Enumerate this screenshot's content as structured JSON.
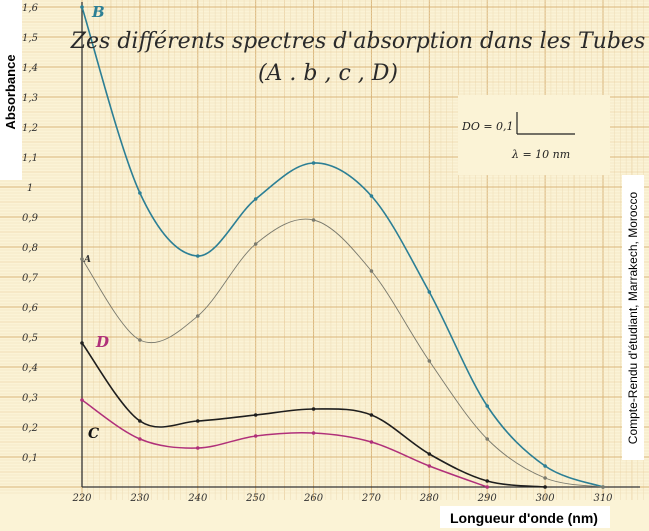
{
  "chart_data": {
    "type": "line",
    "title": "Zes différents spectres d'absorption dans les Tubes",
    "subtitle": "(A . b , c , D)",
    "xlabel": "Longueur d'onde (nm)",
    "ylabel": "Absorbance",
    "side_note": "Compte-Rendu d'étudiant, Marrakech, Morocco",
    "scale_note": {
      "y_unit": "DO = 0,1",
      "x_unit": "λ = 10 nm"
    },
    "xlim": [
      220,
      310
    ],
    "ylim": [
      0,
      1.6
    ],
    "grid": true,
    "x_ticks": [
      220,
      230,
      240,
      250,
      260,
      270,
      280,
      290,
      300,
      310
    ],
    "x_tick_labels": [
      "220",
      "230",
      "240",
      "250",
      "260",
      "270",
      "280",
      "290",
      "300",
      "310"
    ],
    "y_ticks": [
      0.1,
      0.2,
      0.3,
      0.4,
      0.5,
      0.6,
      0.7,
      0.8,
      0.9,
      1.0,
      1.1,
      1.2,
      1.3,
      1.4,
      1.5,
      1.6
    ],
    "y_tick_labels": [
      "0,1",
      "0,2",
      "0,3",
      "0,4",
      "0,5",
      "0,6",
      "0,7",
      "0,8",
      "0,9",
      "1",
      "1,1",
      "1,2",
      "1,3",
      "1,4",
      "1,5",
      "1,6"
    ],
    "series": [
      {
        "name": "B",
        "color": "#2c7f95",
        "x": [
          220,
          230,
          240,
          250,
          260,
          270,
          280,
          290,
          300,
          310
        ],
        "values": [
          1.62,
          0.98,
          0.77,
          0.96,
          1.08,
          0.97,
          0.65,
          0.27,
          0.07,
          0.0
        ]
      },
      {
        "name": "A",
        "color": "#7a7a6e",
        "x": [
          220,
          230,
          240,
          250,
          260,
          270,
          280,
          290,
          300,
          310
        ],
        "values": [
          0.76,
          0.49,
          0.57,
          0.81,
          0.89,
          0.72,
          0.42,
          0.16,
          0.03,
          0.0
        ]
      },
      {
        "name": "D",
        "color": "#1e1e1e",
        "x": [
          220,
          230,
          240,
          250,
          260,
          270,
          280,
          290,
          300
        ],
        "values": [
          0.48,
          0.22,
          0.22,
          0.24,
          0.26,
          0.24,
          0.11,
          0.02,
          0.0
        ]
      },
      {
        "name": "C",
        "color": "#b0307a",
        "x": [
          220,
          230,
          240,
          250,
          260,
          270,
          280,
          290
        ],
        "values": [
          0.29,
          0.16,
          0.13,
          0.17,
          0.18,
          0.15,
          0.07,
          0.0
        ]
      }
    ],
    "series_label_colors": {
      "B": "#2c7f95",
      "A": "#333333",
      "D": "#b0307a",
      "C": "#111111"
    }
  }
}
